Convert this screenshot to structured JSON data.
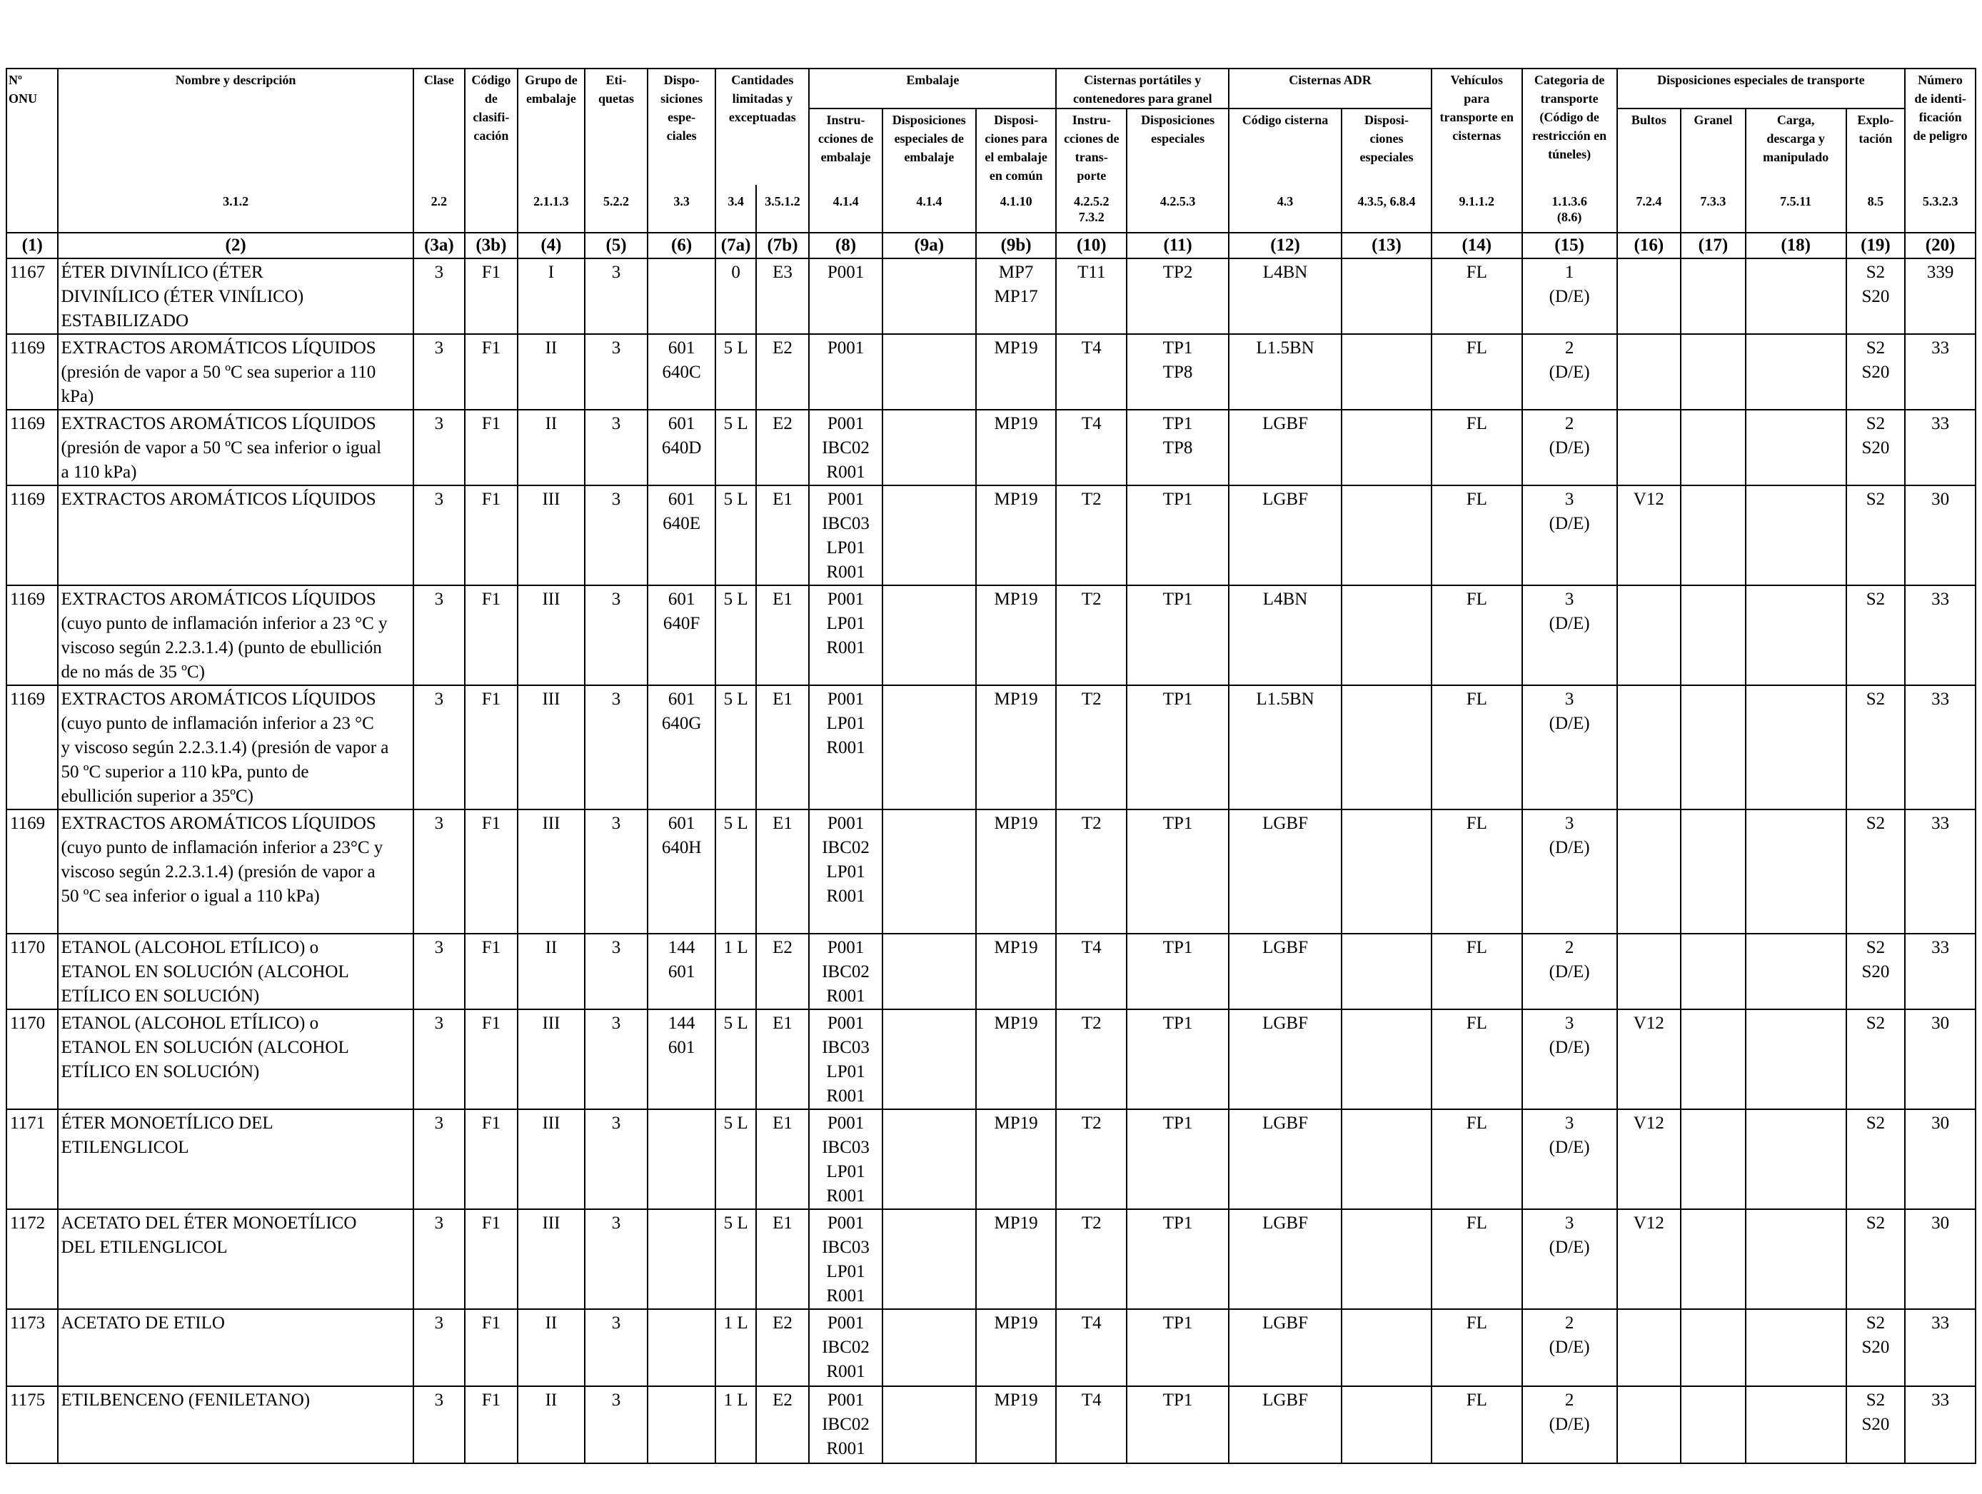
{
  "header": {
    "onu": "Nº\nONU",
    "nombre": "Nombre y descripción",
    "clase": "Clase",
    "codigo": "Código\nde clasifi-\ncación",
    "grupo": "Grupo de\nembalaje",
    "etiquetas": "Eti-\nquetas",
    "disposiciones": "Dispo-\nsiciones\nespe-\nciales",
    "cantidades": "Cantidades\nlimitadas y\nexceptuadas",
    "embalaje": "Embalaje",
    "emb_instr": "Instru-\ncciones de\nembalaje",
    "emb_disp": "Disposiciones\nespeciales de\nembalaje",
    "emb_comun": "Disposi-\nciones para\nel embalaje\nen común",
    "cisternas_port": "Cisternas portátiles y\ncontenedores para granel",
    "cp_instr": "Instru-\ncciones de\ntrans-\nporte",
    "cp_disp": "Disposiciones\nespeciales",
    "cisternas_adr": "Cisternas ADR",
    "adr_codigo": "Código cisterna",
    "adr_disp": "Disposi-\nciones\nespeciales",
    "vehiculos": "Vehículos\npara\ntransporte en\ncisternas",
    "categoria": "Categoria de\ntransporte\n(Código de\nrestricción en\ntúneles)",
    "disp_transporte": "Disposiciones especiales de transporte",
    "bultos": "Bultos",
    "granel": "Granel",
    "carga": "Carga,\ndescarga y\nmanipulado",
    "explotacion": "Explo-\ntación",
    "numero": "Número\nde identi-\nficación\nde peligro"
  },
  "sections": [
    "",
    "3.1.2",
    "2.2",
    "",
    "2.1.1.3",
    "5.2.2",
    "3.3",
    "3.4",
    "3.5.1.2",
    "4.1.4",
    "4.1.4",
    "4.1.10",
    "4.2.5.2\n7.3.2",
    "4.2.5.3",
    "4.3",
    "4.3.5, 6.8.4",
    "9.1.1.2",
    "1.1.3.6\n(8.6)",
    "7.2.4",
    "7.3.3",
    "7.5.11",
    "8.5",
    "5.3.2.3"
  ],
  "colnums": [
    "(1)",
    "(2)",
    "(3a)",
    "(3b)",
    "(4)",
    "(5)",
    "(6)",
    "(7a)",
    "(7b)",
    "(8)",
    "(9a)",
    "(9b)",
    "(10)",
    "(11)",
    "(12)",
    "(13)",
    "(14)",
    "(15)",
    "(16)",
    "(17)",
    "(18)",
    "(19)",
    "(20)"
  ],
  "rows": [
    {
      "c1": "1167",
      "c2": "ÉTER DIVINÍLICO (ÉTER\nDIVINÍLICO (ÉTER VINÍLICO)\nESTABILIZADO",
      "c3a": "3",
      "c3b": "F1",
      "c4": "I",
      "c5": "3",
      "c6": "",
      "c7a": "0",
      "c7b": "E3",
      "c8": "P001",
      "c9a": "",
      "c9b": "MP7\nMP17",
      "c10": "T11",
      "c11": "TP2",
      "c12": "L4BN",
      "c13": "",
      "c14": "FL",
      "c15": "1\n(D/E)",
      "c16": "",
      "c17": "",
      "c18": "",
      "c19": "S2\nS20",
      "c20": "339"
    },
    {
      "c1": "1169",
      "c2": "EXTRACTOS AROMÁTICOS LÍQUIDOS\n(presión de vapor a 50 ºC sea superior a 110\nkPa)",
      "c3a": "3",
      "c3b": "F1",
      "c4": "II",
      "c5": "3",
      "c6": "601\n640C",
      "c7a": "5 L",
      "c7b": "E2",
      "c8": "P001",
      "c9a": "",
      "c9b": "MP19",
      "c10": "T4",
      "c11": "TP1\nTP8",
      "c12": "L1.5BN",
      "c13": "",
      "c14": "FL",
      "c15": "2\n(D/E)",
      "c16": "",
      "c17": "",
      "c18": "",
      "c19": "S2\nS20",
      "c20": "33"
    },
    {
      "c1": "1169",
      "c2": "EXTRACTOS AROMÁTICOS LÍQUIDOS\n(presión de vapor a 50 ºC sea inferior o igual\na 110 kPa)",
      "c3a": "3",
      "c3b": "F1",
      "c4": "II",
      "c5": "3",
      "c6": "601\n640D",
      "c7a": "5 L",
      "c7b": "E2",
      "c8": "P001\nIBC02\nR001",
      "c9a": "",
      "c9b": "MP19",
      "c10": "T4",
      "c11": "TP1\nTP8",
      "c12": "LGBF",
      "c13": "",
      "c14": "FL",
      "c15": "2\n(D/E)",
      "c16": "",
      "c17": "",
      "c18": "",
      "c19": "S2\nS20",
      "c20": "33"
    },
    {
      "c1": "1169",
      "c2": "EXTRACTOS AROMÁTICOS LÍQUIDOS",
      "c3a": "3",
      "c3b": "F1",
      "c4": "III",
      "c5": "3",
      "c6": "601\n640E",
      "c7a": "5 L",
      "c7b": "E1",
      "c8": "P001\nIBC03\nLP01\nR001",
      "c9a": "",
      "c9b": "MP19",
      "c10": "T2",
      "c11": "TP1",
      "c12": "LGBF",
      "c13": "",
      "c14": "FL",
      "c15": "3\n(D/E)",
      "c16": "V12",
      "c17": "",
      "c18": "",
      "c19": "S2",
      "c20": "30"
    },
    {
      "c1": "1169",
      "c2": "EXTRACTOS AROMÁTICOS LÍQUIDOS\n(cuyo punto de inflamación inferior a 23 °C y\nviscoso según 2.2.3.1.4) (punto de ebullición\nde no más de 35 ºC)",
      "c3a": "3",
      "c3b": "F1",
      "c4": "III",
      "c5": "3",
      "c6": "601\n640F",
      "c7a": "5 L",
      "c7b": "E1",
      "c8": "P001\nLP01\nR001",
      "c9a": "",
      "c9b": "MP19",
      "c10": "T2",
      "c11": "TP1",
      "c12": "L4BN",
      "c13": "",
      "c14": "FL",
      "c15": "3\n(D/E)",
      "c16": "",
      "c17": "",
      "c18": "",
      "c19": "S2",
      "c20": "33"
    },
    {
      "c1": "1169",
      "c2": "EXTRACTOS AROMÁTICOS LÍQUIDOS\n(cuyo punto de inflamación  inferior a 23 °C\ny viscoso según 2.2.3.1.4) (presión de vapor a\n50 ºC  superior a 110 kPa, punto de\nebullición superior a 35ºC)",
      "c3a": "3",
      "c3b": "F1",
      "c4": "III",
      "c5": "3",
      "c6": "601\n640G",
      "c7a": "5 L",
      "c7b": "E1",
      "c8": "P001\nLP01\nR001",
      "c9a": "",
      "c9b": "MP19",
      "c10": "T2",
      "c11": "TP1",
      "c12": "L1.5BN",
      "c13": "",
      "c14": "FL",
      "c15": "3\n(D/E)",
      "c16": "",
      "c17": "",
      "c18": "",
      "c19": "S2",
      "c20": "33"
    },
    {
      "c1": "1169",
      "c2": "EXTRACTOS AROMÁTICOS LÍQUIDOS\n(cuyo punto de inflamación  inferior a 23°C y\nviscoso según 2.2.3.1.4) (presión de vapor a\n50 ºC sea inferior o igual a 110 kPa)",
      "c3a": "3",
      "c3b": "F1",
      "c4": "III",
      "c5": "3",
      "c6": "601\n640H",
      "c7a": "5 L",
      "c7b": "E1",
      "c8": "P001\nIBC02\nLP01\nR001",
      "c9a": "",
      "c9b": "MP19",
      "c10": "T2",
      "c11": "TP1",
      "c12": "LGBF",
      "c13": "",
      "c14": "FL",
      "c15": "3\n(D/E)",
      "c16": "",
      "c17": "",
      "c18": "",
      "c19": "S2",
      "c20": "33"
    },
    {
      "c1": "1170",
      "c2": "ETANOL (ALCOHOL ETÍLICO) o\nETANOL EN SOLUCIÓN (ALCOHOL\nETÍLICO EN SOLUCIÓN)",
      "c3a": "3",
      "c3b": "F1",
      "c4": "II",
      "c5": "3",
      "c6": "144\n601",
      "c7a": "1 L",
      "c7b": "E2",
      "c8": "P001\nIBC02\nR001",
      "c9a": "",
      "c9b": "MP19",
      "c10": "T4",
      "c11": "TP1",
      "c12": "LGBF",
      "c13": "",
      "c14": "FL",
      "c15": "2\n(D/E)",
      "c16": "",
      "c17": "",
      "c18": "",
      "c19": "S2\nS20",
      "c20": "33"
    },
    {
      "c1": "1170",
      "c2": "ETANOL (ALCOHOL ETÍLICO) o\nETANOL EN SOLUCIÓN (ALCOHOL\nETÍLICO EN SOLUCIÓN)",
      "c3a": "3",
      "c3b": "F1",
      "c4": "III",
      "c5": "3",
      "c6": "144\n601",
      "c7a": "5 L",
      "c7b": "E1",
      "c8": "P001\nIBC03\nLP01\nR001",
      "c9a": "",
      "c9b": "MP19",
      "c10": "T2",
      "c11": "TP1",
      "c12": "LGBF",
      "c13": "",
      "c14": "FL",
      "c15": "3\n(D/E)",
      "c16": "V12",
      "c17": "",
      "c18": "",
      "c19": "S2",
      "c20": "30"
    },
    {
      "c1": "1171",
      "c2": "ÉTER MONOETÍLICO DEL\nETILENGLICOL",
      "c3a": "3",
      "c3b": "F1",
      "c4": "III",
      "c5": "3",
      "c6": "",
      "c7a": "5 L",
      "c7b": "E1",
      "c8": "P001\nIBC03\nLP01\nR001",
      "c9a": "",
      "c9b": "MP19",
      "c10": "T2",
      "c11": "TP1",
      "c12": "LGBF",
      "c13": "",
      "c14": "FL",
      "c15": "3\n(D/E)",
      "c16": "V12",
      "c17": "",
      "c18": "",
      "c19": "S2",
      "c20": "30"
    },
    {
      "c1": "1172",
      "c2": "ACETATO DEL ÉTER MONOETÍLICO\nDEL ETILENGLICOL",
      "c3a": "3",
      "c3b": "F1",
      "c4": "III",
      "c5": "3",
      "c6": "",
      "c7a": "5 L",
      "c7b": "E1",
      "c8": "P001\nIBC03\nLP01\nR001",
      "c9a": "",
      "c9b": "MP19",
      "c10": "T2",
      "c11": "TP1",
      "c12": "LGBF",
      "c13": "",
      "c14": "FL",
      "c15": "3\n(D/E)",
      "c16": "V12",
      "c17": "",
      "c18": "",
      "c19": "S2",
      "c20": "30"
    },
    {
      "c1": "1173",
      "c2": "ACETATO DE ETILO",
      "c3a": "3",
      "c3b": "F1",
      "c4": "II",
      "c5": "3",
      "c6": "",
      "c7a": "1 L",
      "c7b": "E2",
      "c8": "P001\nIBC02\nR001",
      "c9a": "",
      "c9b": "MP19",
      "c10": "T4",
      "c11": "TP1",
      "c12": "LGBF",
      "c13": "",
      "c14": "FL",
      "c15": "2\n(D/E)",
      "c16": "",
      "c17": "",
      "c18": "",
      "c19": "S2\nS20",
      "c20": "33"
    },
    {
      "c1": "1175",
      "c2": "ETILBENCENO (FENILETANO)",
      "c3a": "3",
      "c3b": "F1",
      "c4": "II",
      "c5": "3",
      "c6": "",
      "c7a": "1 L",
      "c7b": "E2",
      "c8": "P001\nIBC02\nR001",
      "c9a": "",
      "c9b": "MP19",
      "c10": "T4",
      "c11": "TP1",
      "c12": "LGBF",
      "c13": "",
      "c14": "FL",
      "c15": "2\n(D/E)",
      "c16": "",
      "c17": "",
      "c18": "",
      "c19": "S2\nS20",
      "c20": "33"
    }
  ]
}
